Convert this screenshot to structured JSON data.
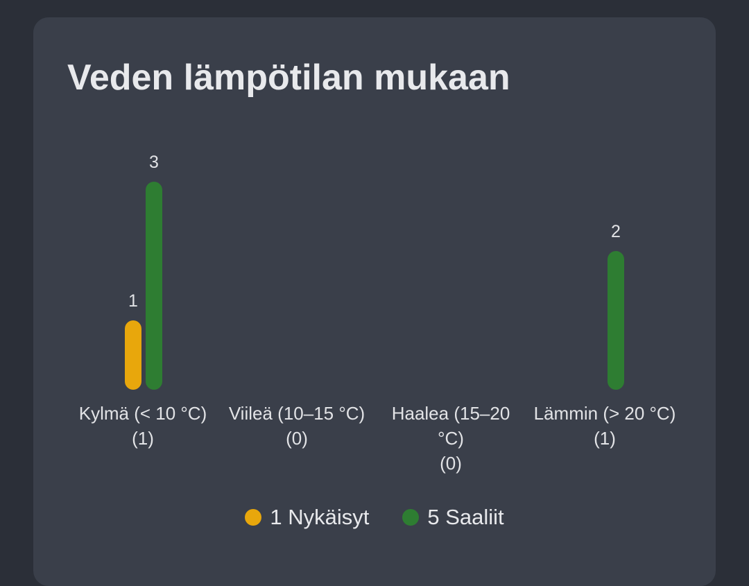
{
  "chart_data": {
    "type": "bar",
    "title": "Veden lämpötilan mukaan",
    "categories": [
      "Kylmä (< 10 °C)",
      "Viileä (10–15 °C)",
      "Haalea (15–20 °C)",
      "Lämmin (> 20 °C)"
    ],
    "category_notes": [
      "(1)",
      "(0)",
      "(0)",
      "(1)"
    ],
    "series": [
      {
        "name": "1 Nykäisyt",
        "color": "#e8a70c",
        "values": [
          1,
          null,
          null,
          null
        ]
      },
      {
        "name": "5 Saaliit",
        "color": "#2e7d32",
        "values": [
          3,
          null,
          null,
          2
        ]
      }
    ]
  }
}
